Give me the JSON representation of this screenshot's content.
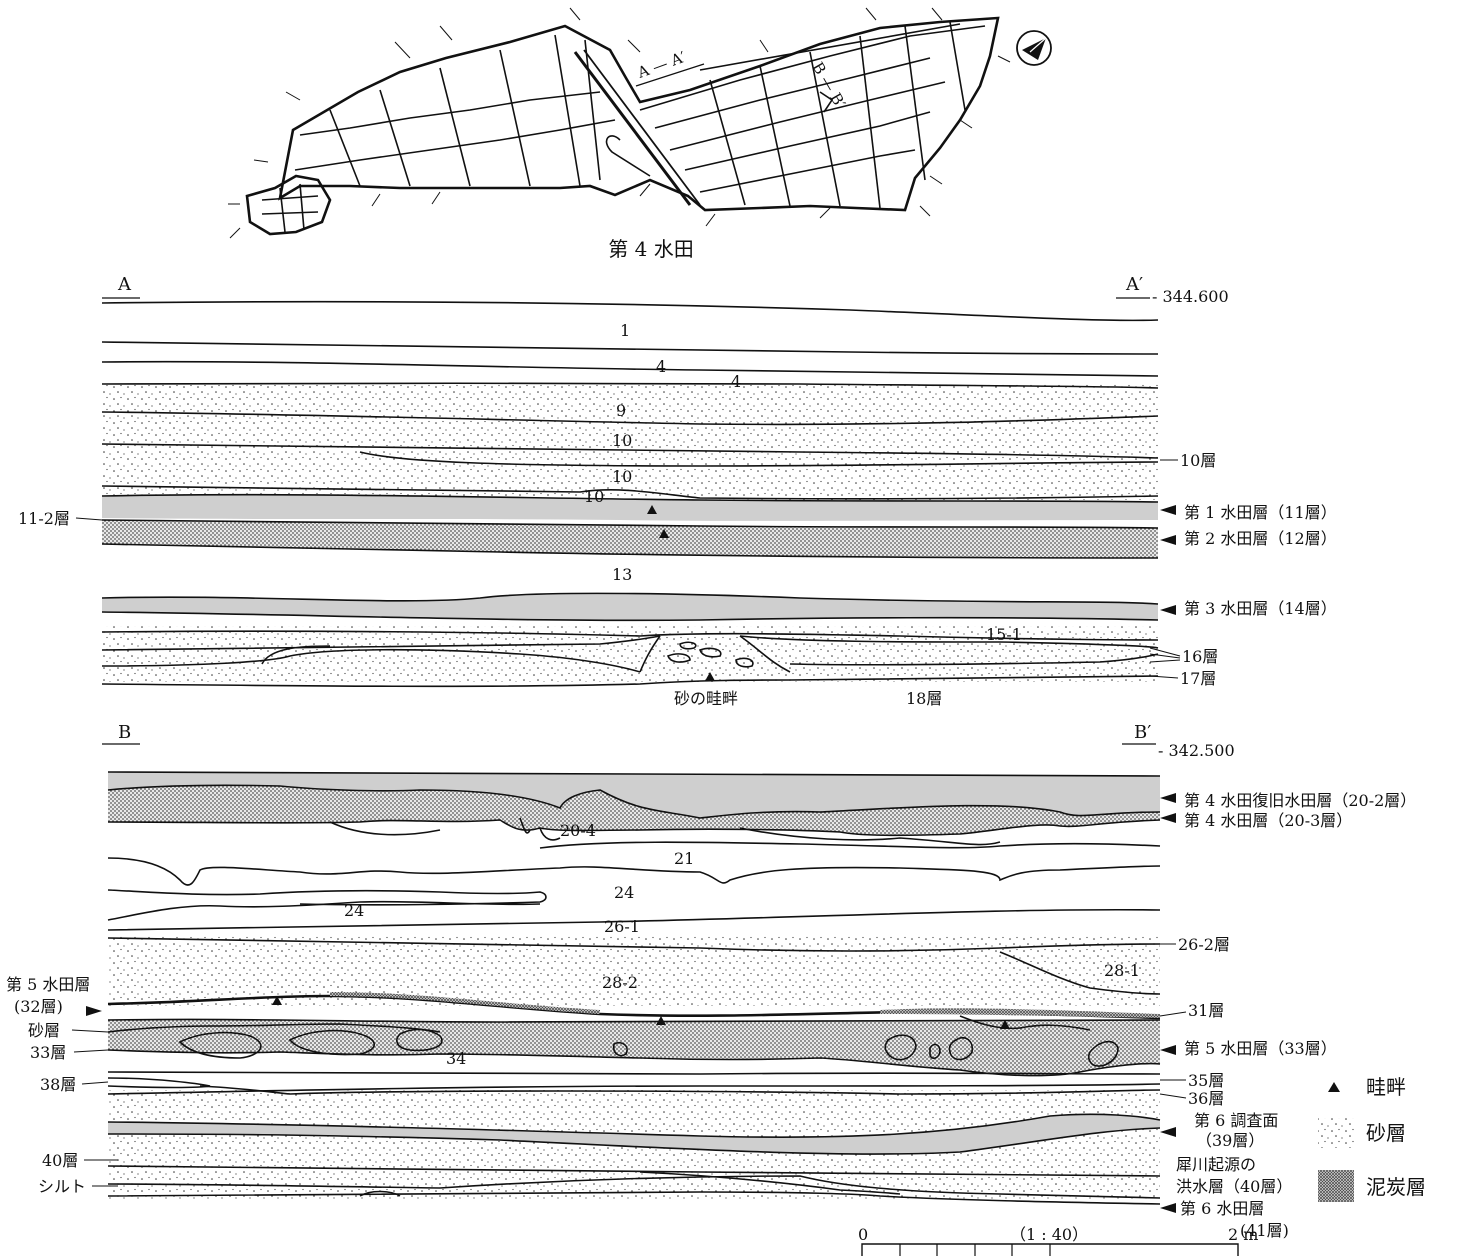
{
  "plan": {
    "caption": "第 4 水田",
    "section_a": "A — A′",
    "section_b": "B — B′"
  },
  "section_a": {
    "start_label": "A",
    "end_label": "A′",
    "elevation": "- 344.600",
    "layers": {
      "l1": "1",
      "l4a": "4",
      "l4b": "4",
      "l9": "9",
      "l10a": "10",
      "l10b": "10",
      "l10c": "10",
      "l13": "13",
      "l15_1": "15-1"
    },
    "side_labels": {
      "left_11_2": "11-2層",
      "r10": "10層",
      "paddy1": "第 1 水田層（11層）",
      "paddy2": "第 2 水田層（12層）",
      "paddy3": "第 3 水田層（14層）",
      "r16": "16層",
      "r17": "17層",
      "sand_ridge": "砂の畦畔",
      "r18": "18層"
    }
  },
  "section_b": {
    "start_label": "B",
    "end_label": "B′",
    "elevation": "- 342.500",
    "layers": {
      "l20_4": "20-4",
      "l21": "21",
      "l24a": "24",
      "l24b": "24",
      "l26_1": "26-1",
      "l28_2": "28-2",
      "l28_1": "28-1",
      "l34": "34"
    },
    "side_labels": {
      "paddy4_restored": "第 4 水田復旧水田層（20-2層）",
      "paddy4": "第 4 水田層（20-3層）",
      "r26_2": "26-2層",
      "r31": "31層",
      "paddy5_33": "第 5 水田層（33層）",
      "r35": "35層",
      "r36": "36層",
      "survey6": "第 6 調査面",
      "survey6_sub": "（39層）",
      "flood1": "犀川起源の",
      "flood2": "洪水層（40層）",
      "paddy6": "第 6 水田層",
      "paddy6_sub": "(41層)",
      "left_paddy5": "第 5 水田層",
      "left_32": "(32層)",
      "left_sand": "砂層",
      "left_33": "33層",
      "left_38": "38層",
      "left_40": "40層",
      "left_silt": "シルト"
    }
  },
  "legend": {
    "ridge": "畦畔",
    "sand": "砂層",
    "peat": "泥炭層"
  },
  "scale": {
    "zero": "0",
    "ratio": "（1 : 40）",
    "end": "2 m"
  },
  "colors": {
    "ink": "#111111",
    "peat_fill": "#c4c4c4",
    "paddy_fill": "#cfcfcf"
  }
}
